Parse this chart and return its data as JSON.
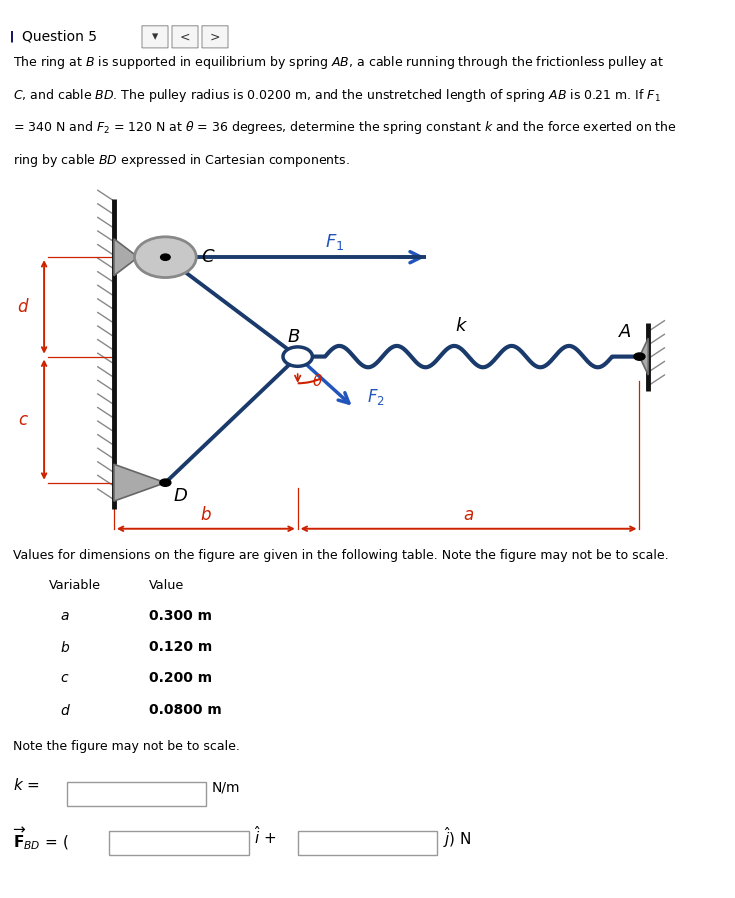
{
  "bg_color": "#ffffff",
  "header_bg": "#eeeeee",
  "header_text": "Question 5",
  "dim_text": "Values for dimensions on the figure are given in the following table. Note the figure may not be to scale.",
  "variables": [
    "a",
    "b",
    "c",
    "d"
  ],
  "values": [
    "0.300 m",
    "0.120 m",
    "0.200 m",
    "0.0800 m"
  ],
  "note_text": "Note the figure may not be to scale.",
  "wall_color": "#111111",
  "spring_color": "#1a3a6b",
  "cable_color": "#1a3a6b",
  "arrow_color": "#2255bb",
  "dim_color": "#cc2200",
  "pulley_gray": "#aaaaaa",
  "hatch_color": "#888888",
  "wedge_color": "#aaaaaa"
}
